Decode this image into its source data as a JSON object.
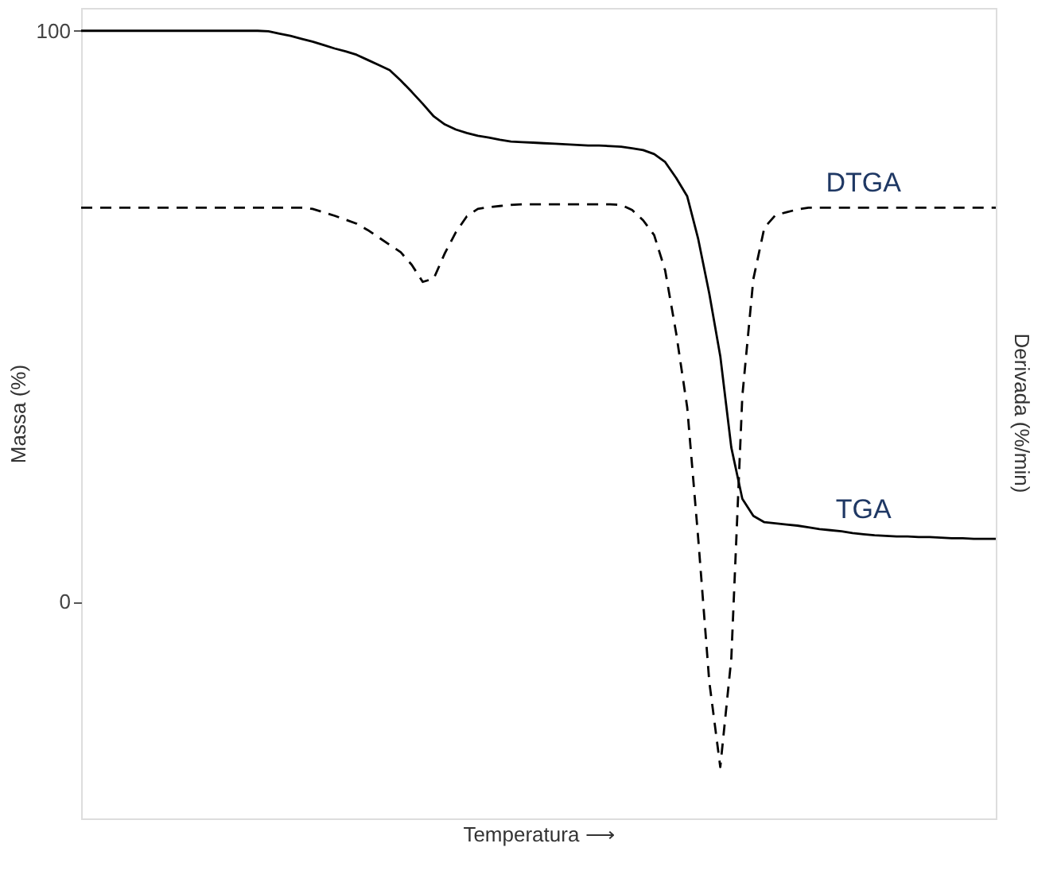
{
  "chart_data": {
    "type": "line",
    "xlabel": "Temperatura ⟶",
    "ylabel": "Massa (%)",
    "y2label": "Derivada (%/min)",
    "categories": [
      null,
      null,
      null,
      null,
      null,
      null,
      null,
      null,
      null,
      null,
      null,
      null,
      null,
      null,
      null,
      null,
      null,
      null,
      null,
      null,
      null,
      null,
      null,
      null,
      null,
      null,
      null,
      null,
      null,
      null,
      null,
      null,
      null,
      null,
      null,
      null,
      null,
      null,
      null,
      null,
      null,
      null,
      null,
      null,
      null,
      null,
      null,
      null,
      null,
      null,
      null,
      null,
      null,
      null,
      null,
      null,
      null,
      null,
      null,
      null,
      null,
      null,
      null,
      null,
      null,
      null,
      null,
      null,
      null,
      null,
      null,
      null,
      null,
      null,
      null,
      null,
      null,
      null,
      null,
      null,
      null,
      null,
      null,
      null
    ],
    "ylim": [
      -38,
      104
    ],
    "yticks": [
      0,
      100
    ],
    "grid": false,
    "legend": false,
    "marker": "none",
    "series": [
      {
        "name": "TGA",
        "color": "#000000",
        "line_style": "solid",
        "values": [
          100,
          100,
          100,
          100,
          100,
          100,
          100,
          100,
          100,
          100,
          100,
          100,
          100,
          100,
          100,
          100,
          100,
          99.9,
          99.5,
          99.1,
          98.6,
          98.1,
          97.5,
          96.9,
          96.4,
          95.8,
          94.9,
          94.0,
          93.1,
          91.3,
          89.3,
          87.2,
          85,
          83.6,
          82.7,
          82.1,
          81.6,
          81.3,
          80.9,
          80.6,
          80.5,
          80.4,
          80.3,
          80.2,
          80.1,
          80.0,
          79.9,
          79.9,
          79.8,
          79.7,
          79.4,
          79.1,
          78.4,
          77,
          74.2,
          71,
          63.5,
          54,
          43,
          27,
          18,
          15,
          13.9,
          13.7,
          13.5,
          13.3,
          13.0,
          12.7,
          12.5,
          12.3,
          12.0,
          11.8,
          11.6,
          11.5,
          11.4,
          11.4,
          11.3,
          11.3,
          11.2,
          11.1,
          11.1,
          11.0,
          11,
          11
        ]
      },
      {
        "name": "DTGA",
        "color": "#000000",
        "line_style": "dashed",
        "values": [
          69,
          69,
          69,
          69,
          69,
          69,
          69,
          69,
          69,
          69,
          69,
          69,
          69,
          69,
          69,
          69,
          69,
          69,
          69,
          69,
          69,
          68.8,
          68.2,
          67.6,
          66.9,
          66.2,
          65.1,
          63.8,
          62.5,
          61.2,
          59,
          56,
          56.6,
          61,
          64.7,
          67.5,
          68.8,
          69.1,
          69.3,
          69.5,
          69.6,
          69.6,
          69.6,
          69.6,
          69.6,
          69.6,
          69.6,
          69.6,
          69.6,
          69.5,
          68.6,
          66.8,
          64.2,
          58,
          47,
          34,
          11,
          -14,
          -29,
          -10,
          36,
          56.5,
          65.5,
          67.7,
          68.2,
          68.7,
          69,
          69,
          69,
          69,
          69,
          69,
          69,
          69,
          69,
          69,
          69,
          69,
          69,
          69,
          69,
          69,
          69,
          69
        ]
      }
    ]
  }
}
